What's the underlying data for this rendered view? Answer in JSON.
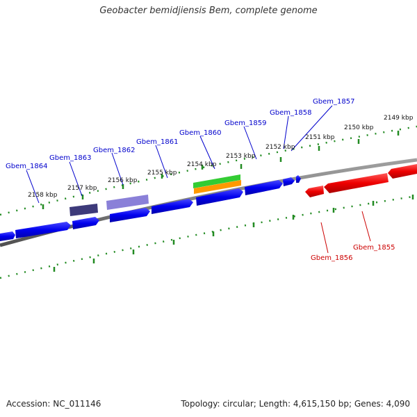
{
  "title": "Geobacter bemidjiensis Bem, complete genome",
  "footer": {
    "accession": "Accession: NC_011146",
    "stats": "Topology: circular; Length: 4,615,150 bp; Genes: 4,090"
  },
  "kbp_labels": [
    "2158 kbp",
    "2157 kbp",
    "2156 kbp",
    "2155 kbp",
    "2154 kbp",
    "2153 kbp",
    "2152 kbp",
    "2151 kbp",
    "2150 kbp",
    "2149 kbp"
  ],
  "forward_gene_labels": [
    "Gbem_1864",
    "Gbem_1863",
    "Gbem_1862",
    "Gbem_1861",
    "Gbem_1860",
    "Gbem_1859",
    "Gbem_1858",
    "Gbem_1857"
  ],
  "reverse_gene_labels": [
    "Gbem_1856",
    "Gbem_1855"
  ],
  "colors": {
    "forward_gene": "#0000ee",
    "reverse_gene": "#ee0000",
    "backbone": "#808080",
    "ticks": "#228b22",
    "feature_dark": "#3d3a7a",
    "feature_light": "#8a80d8",
    "feature_green": "#33cc33",
    "feature_orange": "#ff9900"
  }
}
